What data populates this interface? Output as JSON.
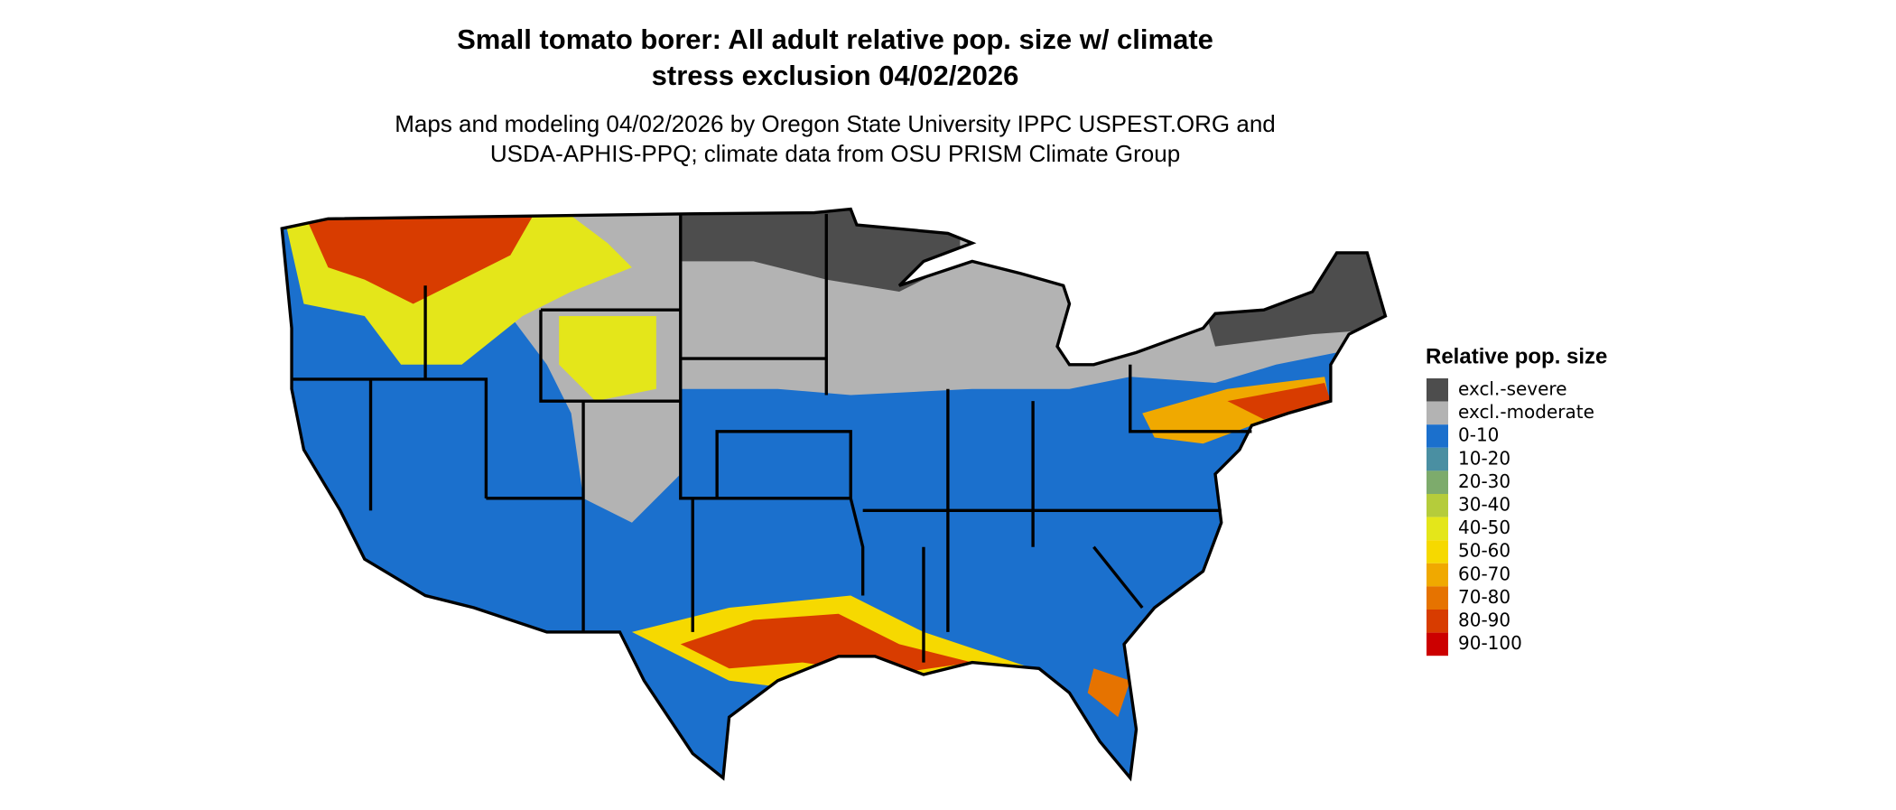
{
  "title": [
    "Small tomato borer: All adult relative pop. size w/ climate",
    "stress exclusion 04/02/2026"
  ],
  "subtitle": [
    "Maps and modeling 04/02/2026 by Oregon State University IPPC USPEST.ORG and",
    "USDA-APHIS-PPQ; climate data from OSU PRISM Climate Group"
  ],
  "legend": {
    "title": "Relative pop. size",
    "items": [
      {
        "label": "excl.-severe",
        "color": "#4d4d4d"
      },
      {
        "label": "excl.-moderate",
        "color": "#b3b3b3"
      },
      {
        "label": "0-10",
        "color": "#1b70cd"
      },
      {
        "label": "10-20",
        "color": "#4a8fa2"
      },
      {
        "label": "20-30",
        "color": "#7dab6c"
      },
      {
        "label": "30-40",
        "color": "#b5cc3b"
      },
      {
        "label": "40-50",
        "color": "#e4e61a"
      },
      {
        "label": "50-60",
        "color": "#f6d900"
      },
      {
        "label": "60-70",
        "color": "#f0a900"
      },
      {
        "label": "70-80",
        "color": "#e67300"
      },
      {
        "label": "80-90",
        "color": "#d83c00"
      },
      {
        "label": "90-100",
        "color": "#cc0000"
      }
    ]
  }
}
